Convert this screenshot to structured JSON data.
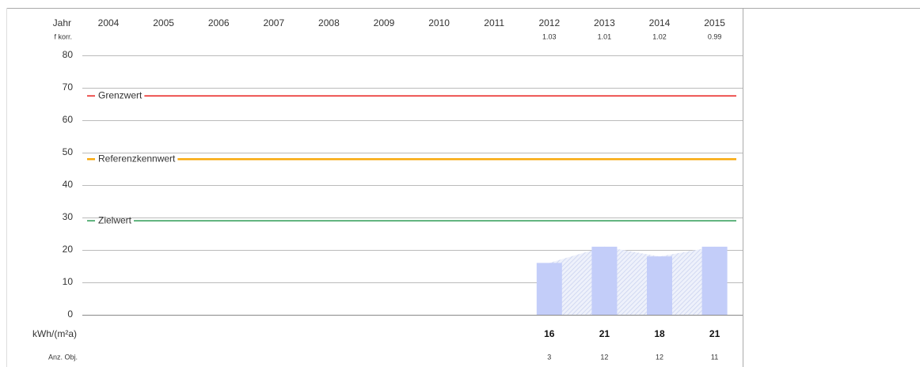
{
  "chart_data": {
    "type": "bar",
    "year_label": "Jahr",
    "fkorr_label": "f korr.",
    "unit_label": "kWh/(m²a)",
    "count_label": "Anz. Obj.",
    "categories": [
      "2004",
      "2005",
      "2006",
      "2007",
      "2008",
      "2009",
      "2010",
      "2011",
      "2012",
      "2013",
      "2014",
      "2015"
    ],
    "values": [
      null,
      null,
      null,
      null,
      null,
      null,
      null,
      null,
      16,
      21,
      18,
      21
    ],
    "fkorr": [
      null,
      null,
      null,
      null,
      null,
      null,
      null,
      null,
      1.03,
      1.01,
      1.02,
      0.99
    ],
    "counts": [
      null,
      null,
      null,
      null,
      null,
      null,
      null,
      null,
      3,
      12,
      12,
      11
    ],
    "color": "#c3cdf9",
    "area_color": "#dde3f7",
    "ylim": [
      0,
      80
    ],
    "yticks": [
      0,
      10,
      20,
      30,
      40,
      50,
      60,
      70,
      80
    ],
    "grid": true,
    "reference_lines": [
      {
        "name": "Grenzwert",
        "value": 67.5,
        "color": "#e8201e"
      },
      {
        "name": "Referenzkennwert",
        "value": 48,
        "color": "#f8a90d"
      },
      {
        "name": "Zielwert",
        "value": 29,
        "color": "#2b9a53"
      }
    ]
  }
}
